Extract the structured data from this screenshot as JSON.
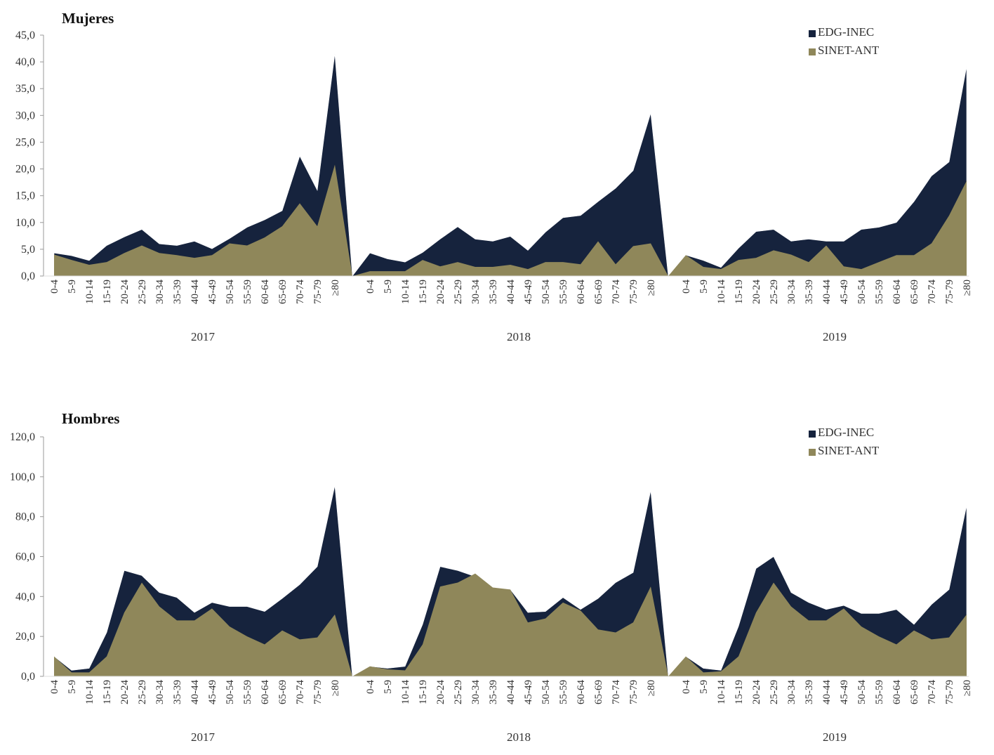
{
  "chart_data": [
    {
      "type": "area",
      "title": "Mujeres",
      "ylim": [
        0,
        45
      ],
      "yticks": [
        "0,0",
        "5,0",
        "10,0",
        "15,0",
        "20,0",
        "25,0",
        "30,0",
        "35,0",
        "40,0",
        "45,0"
      ],
      "ytick_values": [
        0,
        5,
        10,
        15,
        20,
        25,
        30,
        35,
        40,
        45
      ],
      "categories": [
        "0-4",
        "5-9",
        "10-14",
        "15-19",
        "20-24",
        "25-29",
        "30-34",
        "35-39",
        "40-44",
        "45-49",
        "50-54",
        "55-59",
        "60-64",
        "65-69",
        "70-74",
        "75-79",
        "≥80"
      ],
      "groups": [
        "2017",
        "2018",
        "2019"
      ],
      "legend_position": "top-right",
      "grid": false,
      "series": [
        {
          "name": "EDG-INEC",
          "color": "#16233d",
          "values": [
            [
              4.3,
              3.8,
              2.9,
              5.7,
              7.3,
              8.7,
              6.0,
              5.7,
              6.5,
              5.1,
              7.0,
              9.1,
              10.5,
              12.2,
              22.4,
              16.0,
              41.5
            ],
            [
              4.3,
              3.2,
              2.6,
              4.4,
              6.9,
              9.2,
              6.9,
              6.5,
              7.4,
              4.8,
              8.2,
              10.9,
              11.3,
              13.9,
              16.4,
              19.7,
              30.4
            ],
            [
              3.9,
              2.9,
              1.6,
              5.2,
              8.3,
              8.7,
              6.5,
              6.9,
              6.5,
              6.5,
              8.7,
              9.1,
              10.0,
              13.9,
              18.7,
              21.3,
              39.1
            ]
          ]
        },
        {
          "name": "SINET-ANT",
          "color": "#8f875a",
          "values": [
            [
              4.0,
              3.0,
              2.1,
              2.6,
              4.3,
              5.7,
              4.3,
              3.9,
              3.4,
              3.9,
              6.1,
              5.7,
              7.2,
              9.3,
              13.6,
              9.3,
              20.8
            ],
            [
              0.9,
              0.9,
              0.9,
              3.0,
              1.8,
              2.6,
              1.7,
              1.7,
              2.1,
              1.3,
              2.6,
              2.6,
              2.2,
              6.5,
              2.2,
              5.6,
              6.1
            ],
            [
              3.9,
              1.7,
              1.3,
              3.0,
              3.4,
              4.8,
              4.0,
              2.6,
              5.7,
              1.8,
              1.3,
              2.6,
              3.9,
              3.9,
              6.1,
              11.3,
              17.8
            ]
          ]
        }
      ]
    },
    {
      "type": "area",
      "title": "Hombres",
      "ylim": [
        0,
        120
      ],
      "yticks": [
        "0,0",
        "20,0",
        "40,0",
        "60,0",
        "80,0",
        "100,0",
        "120,0"
      ],
      "ytick_values": [
        0,
        20,
        40,
        60,
        80,
        100,
        120
      ],
      "categories": [
        "0-4",
        "5-9",
        "10-14",
        "15-19",
        "20-24",
        "25-29",
        "30-34",
        "35-39",
        "40-44",
        "45-49",
        "50-54",
        "55-59",
        "60-64",
        "65-69",
        "70-74",
        "75-79",
        "≥80"
      ],
      "groups": [
        "2017",
        "2018",
        "2019"
      ],
      "legend_position": "top-right",
      "grid": false,
      "series": [
        {
          "name": "EDG-INEC",
          "color": "#16233d",
          "values": [
            [
              10,
              3,
              4,
              22,
              53,
              50.5,
              42,
              39.5,
              32,
              37,
              35,
              35,
              32.5,
              39,
              46,
              55,
              95.5
            ],
            [
              5,
              4,
              5,
              26,
              55,
              53,
              50,
              44,
              43.5,
              32,
              32.5,
              39.5,
              33.5,
              39,
              47,
              52,
              93
            ],
            [
              10,
              4,
              3,
              25,
              54,
              60,
              42,
              37,
              33.5,
              35.5,
              31.5,
              31.5,
              33.5,
              26,
              36,
              43.5,
              85.5
            ]
          ]
        },
        {
          "name": "SINET-ANT",
          "color": "#8f875a",
          "values": [
            [
              10,
              2,
              2,
              10,
              32,
              47,
              35,
              28,
              28,
              34,
              25,
              20,
              16,
              23,
              18.5,
              19.5,
              31
            ],
            [
              5,
              3.5,
              3,
              16,
              45,
              47,
              51.5,
              44.5,
              43.5,
              27,
              29,
              37,
              33,
              23.5,
              22,
              27,
              45
            ],
            [
              10,
              2,
              2.5,
              10,
              32,
              47,
              35,
              28,
              28,
              34,
              25,
              20,
              16,
              23,
              18.5,
              19.5,
              31
            ]
          ]
        }
      ]
    }
  ]
}
